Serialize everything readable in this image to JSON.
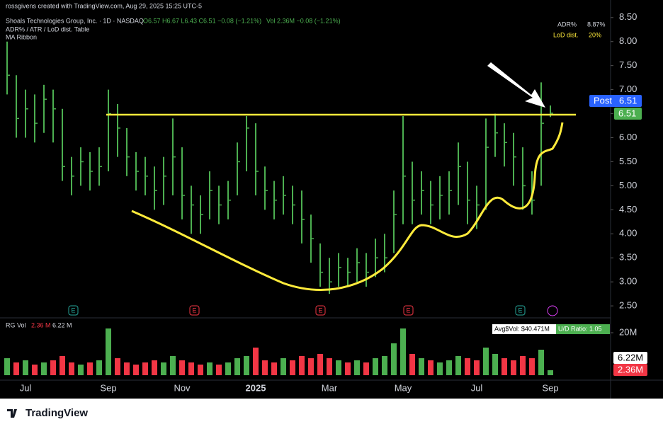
{
  "header": {
    "credit": "rossgivens created with TradingView.com, Aug 29, 2025 15:25 UTC-5",
    "symbol": "Shoals Technologies Group, Inc. · 1D · NASDAQ",
    "ohlc": "O6.57 H6.67 L6.43 C6.51 −0.08 (−1.21%)",
    "vol": "Vol 2.36M −0.08 (−1.21%)",
    "indicator1": "ADR% / ATR / LoD dist. Table",
    "indicator2": "MA Ribbon"
  },
  "table": {
    "rows": [
      [
        "ADR%",
        "8.87%"
      ],
      [
        "LoD dist.",
        "20%"
      ]
    ]
  },
  "price_labels": {
    "post": "Post",
    "post_value": "6.51",
    "last": "6.51"
  },
  "earnings_markers": [
    "E",
    "E",
    "E",
    "E",
    "E"
  ],
  "volume_pane": {
    "title": "RG Vol",
    "current": "2.36 M",
    "average": "6.22 M",
    "avg_dollar": "Avg$Vol: $40.471M",
    "ud_ratio": "U/D Ratio: 1.05",
    "last_label": "2.36M",
    "avg_label": "6.22M"
  },
  "footer": "TradingView",
  "chart_data": {
    "type": "ohlc",
    "color_up": "#4caf50",
    "color_down": "#f23645",
    "categories": [
      null,
      null,
      "Jul",
      null,
      null,
      null,
      null,
      null,
      null,
      null,
      null,
      "Sep",
      null,
      null,
      null,
      null,
      null,
      null,
      null,
      "Nov",
      null,
      null,
      null,
      null,
      null,
      null,
      null,
      "2025",
      null,
      null,
      null,
      null,
      null,
      null,
      null,
      "Mar",
      null,
      null,
      null,
      null,
      null,
      null,
      null,
      "May",
      null,
      null,
      null,
      null,
      null,
      null,
      null,
      "Jul",
      null,
      null,
      null,
      null,
      null,
      null,
      null,
      "Sep"
    ],
    "high": [
      8.0,
      7.3,
      7.0,
      6.9,
      7.1,
      7.0,
      6.6,
      5.6,
      5.8,
      5.7,
      5.8,
      7.0,
      6.7,
      6.2,
      5.7,
      5.6,
      5.4,
      5.6,
      6.4,
      5.8,
      5.0,
      4.8,
      5.3,
      5.0,
      5.1,
      5.9,
      6.45,
      6.3,
      5.4,
      5.1,
      5.2,
      5.0,
      4.9,
      4.4,
      3.8,
      3.5,
      3.6,
      3.5,
      3.7,
      3.6,
      3.9,
      4.0,
      4.9,
      6.45,
      5.5,
      5.3,
      5.1,
      5.2,
      5.3,
      5.9,
      5.5,
      5.0,
      6.4,
      6.5,
      6.3,
      6.1,
      5.8,
      5.3,
      7.15,
      6.67
    ],
    "low": [
      6.9,
      6.0,
      6.0,
      5.9,
      6.1,
      5.9,
      5.1,
      4.8,
      5.0,
      4.9,
      5.0,
      5.3,
      5.6,
      5.2,
      4.9,
      4.8,
      4.5,
      4.6,
      4.8,
      4.3,
      4.0,
      4.0,
      4.3,
      4.2,
      4.3,
      4.8,
      5.3,
      4.8,
      4.5,
      4.3,
      4.4,
      4.2,
      3.8,
      3.4,
      2.9,
      2.75,
      2.9,
      2.9,
      3.0,
      2.9,
      3.1,
      3.2,
      3.6,
      4.2,
      4.2,
      4.4,
      4.2,
      4.3,
      4.4,
      4.6,
      4.2,
      4.1,
      4.5,
      5.6,
      5.4,
      5.0,
      4.5,
      4.4,
      5.0,
      6.43
    ],
    "close": [
      7.3,
      6.4,
      6.6,
      6.3,
      6.8,
      6.6,
      5.4,
      5.2,
      5.5,
      5.3,
      5.4,
      6.5,
      6.2,
      5.6,
      5.3,
      5.2,
      4.9,
      5.2,
      5.6,
      4.8,
      4.6,
      4.4,
      4.9,
      4.6,
      4.7,
      5.5,
      6.2,
      5.3,
      4.9,
      4.7,
      4.8,
      4.6,
      4.3,
      3.9,
      3.2,
      3.0,
      3.3,
      3.2,
      3.4,
      3.2,
      3.5,
      3.5,
      4.4,
      5.2,
      4.7,
      4.9,
      4.6,
      4.8,
      4.9,
      5.4,
      4.7,
      4.6,
      5.8,
      6.1,
      5.9,
      5.6,
      5.0,
      4.7,
      6.3,
      6.51
    ],
    "volume": [
      8,
      6,
      7,
      5,
      6,
      7,
      9,
      6,
      5,
      6,
      7,
      22,
      8,
      6,
      5,
      6,
      7,
      6,
      9,
      7,
      6,
      5,
      6,
      5,
      6,
      8,
      9,
      13,
      7,
      6,
      8,
      7,
      9,
      8,
      10,
      8,
      7,
      6,
      7,
      6,
      8,
      9,
      15,
      22,
      10,
      8,
      7,
      6,
      7,
      9,
      8,
      7,
      13,
      10,
      8,
      7,
      9,
      8,
      12,
      2.36
    ],
    "ylim": [
      2.31,
      8.6
    ],
    "yticks": [
      {
        "value": 2.5,
        "label": "2.50"
      },
      {
        "value": 3,
        "label": "3.00"
      },
      {
        "value": 3.5,
        "label": "3.50"
      },
      {
        "value": 4,
        "label": "4.00"
      },
      {
        "value": 4.5,
        "label": "4.50"
      },
      {
        "value": 5,
        "label": "5.00"
      },
      {
        "value": 5.5,
        "label": "5.50"
      },
      {
        "value": 6,
        "label": "6.00"
      },
      {
        "value": 6.5,
        "label": "6.50"
      },
      {
        "value": 7,
        "label": "7.00"
      },
      {
        "value": 7.5,
        "label": "7.50"
      },
      {
        "value": 8,
        "label": "8.00"
      },
      {
        "value": 8.5,
        "label": "8.50"
      }
    ],
    "vlim": [
      0,
      25
    ],
    "vticks": [
      {
        "value": 20,
        "label": "20M"
      }
    ]
  }
}
